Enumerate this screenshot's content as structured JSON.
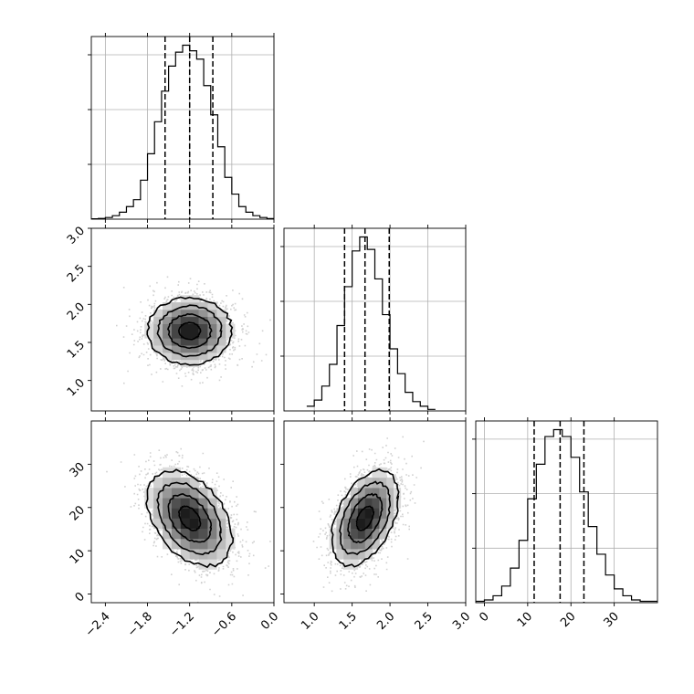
{
  "chart_data": {
    "type": "corner",
    "grid": true,
    "parameters": [
      {
        "index": 0,
        "xlim": [
          -2.6,
          0.0
        ],
        "ticks": [
          -2.4,
          -1.8,
          -1.2,
          -0.6,
          0.0
        ],
        "tick_labels": [
          "−2.4",
          "−1.8",
          "−1.2",
          "−0.6",
          "0.0"
        ],
        "quantiles": [
          -1.55,
          -1.2,
          -0.87
        ],
        "histogram": {
          "bin_edges": [
            -2.6,
            -2.5,
            -2.4,
            -2.3,
            -2.2,
            -2.1,
            -2.0,
            -1.9,
            -1.8,
            -1.7,
            -1.6,
            -1.5,
            -1.4,
            -1.3,
            -1.2,
            -1.1,
            -1.0,
            -0.9,
            -0.8,
            -0.7,
            -0.6,
            -0.5,
            -0.4,
            -0.3,
            -0.2,
            -0.1,
            0.0
          ],
          "counts": [
            0.3,
            0.5,
            1.2,
            2.5,
            5,
            9,
            14,
            28,
            47,
            70,
            92,
            110,
            120,
            125,
            121,
            115,
            96,
            75,
            52,
            30,
            18,
            9,
            5,
            2.5,
            1.2,
            0.4
          ]
        }
      },
      {
        "index": 1,
        "ylim": [
          0.6,
          3.0
        ],
        "xlim": [
          0.6,
          3.0
        ],
        "ticks": [
          1.0,
          1.5,
          2.0,
          2.5,
          3.0
        ],
        "tick_labels": [
          "1.0",
          "1.5",
          "2.0",
          "2.5",
          "3.0"
        ],
        "quantiles": [
          1.4,
          1.67,
          1.99
        ],
        "histogram": {
          "bin_edges": [
            0.9,
            1.0,
            1.1,
            1.2,
            1.3,
            1.4,
            1.5,
            1.6,
            1.7,
            1.8,
            1.9,
            2.0,
            2.1,
            2.2,
            2.3,
            2.4,
            2.5,
            2.6
          ],
          "counts": [
            3,
            7,
            16,
            30,
            55,
            80,
            103,
            112,
            104,
            85,
            62,
            40,
            24,
            12,
            6,
            3,
            1
          ]
        }
      },
      {
        "index": 2,
        "ylim": [
          -2,
          40
        ],
        "xlim": [
          -2,
          40
        ],
        "ticks": [
          0,
          10,
          20,
          30
        ],
        "tick_labels": [
          "0",
          "10",
          "20",
          "30"
        ],
        "quantiles": [
          11.5,
          17.5,
          23
        ],
        "histogram": {
          "bin_edges": [
            -2,
            0,
            2,
            4,
            6,
            8,
            10,
            12,
            14,
            16,
            18,
            20,
            22,
            24,
            26,
            28,
            30,
            32,
            34,
            36,
            38,
            40
          ],
          "counts": [
            1,
            2,
            5,
            12,
            25,
            45,
            75,
            100,
            120,
            125,
            120,
            105,
            80,
            55,
            35,
            20,
            10,
            5,
            2,
            1,
            1
          ]
        }
      }
    ],
    "left_axis_ticks": {
      "row1": [
        "1.0",
        "1.5",
        "2.0",
        "2.5",
        "3.0"
      ],
      "row2": [
        "0",
        "10",
        "20",
        "30"
      ]
    },
    "pairs": [
      {
        "x_param": 0,
        "y_param": 1,
        "mean": [
          -1.2,
          1.65
        ],
        "sd": [
          0.3,
          0.22
        ],
        "correlation": 0.0
      },
      {
        "x_param": 0,
        "y_param": 2,
        "mean": [
          -1.2,
          17.5
        ],
        "sd": [
          0.3,
          5.5
        ],
        "correlation": -0.4
      },
      {
        "x_param": 1,
        "y_param": 2,
        "mean": [
          1.67,
          17.5
        ],
        "sd": [
          0.22,
          5.5
        ],
        "correlation": 0.45
      }
    ],
    "contour_levels": [
      0.5,
      1.0,
      1.5,
      2.0
    ]
  }
}
